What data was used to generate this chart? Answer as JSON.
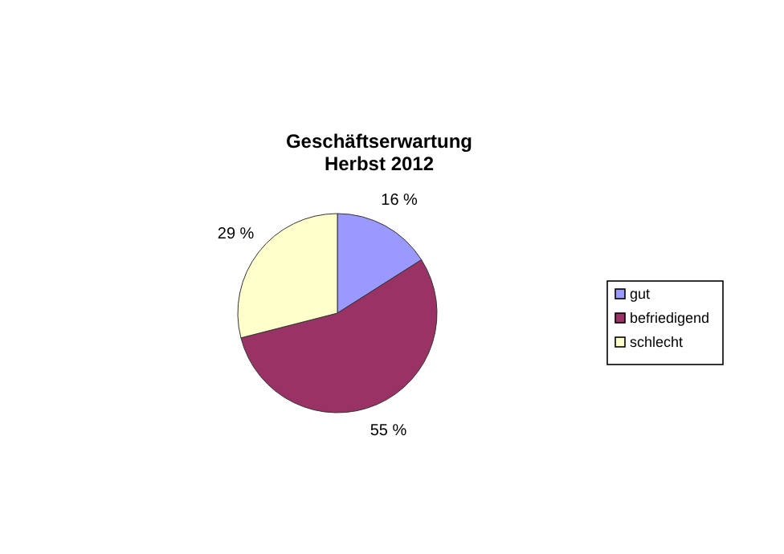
{
  "chart_data": {
    "type": "pie",
    "title": "Geschäftserwartung\nHerbst 2012",
    "categories": [
      "gut",
      "befriedigend",
      "schlecht"
    ],
    "values": [
      16,
      55,
      29
    ],
    "colors": [
      "#9999ff",
      "#993366",
      "#ffffcc"
    ],
    "value_labels": [
      "16 %",
      "55 %",
      "29 %"
    ],
    "legend": "right"
  }
}
